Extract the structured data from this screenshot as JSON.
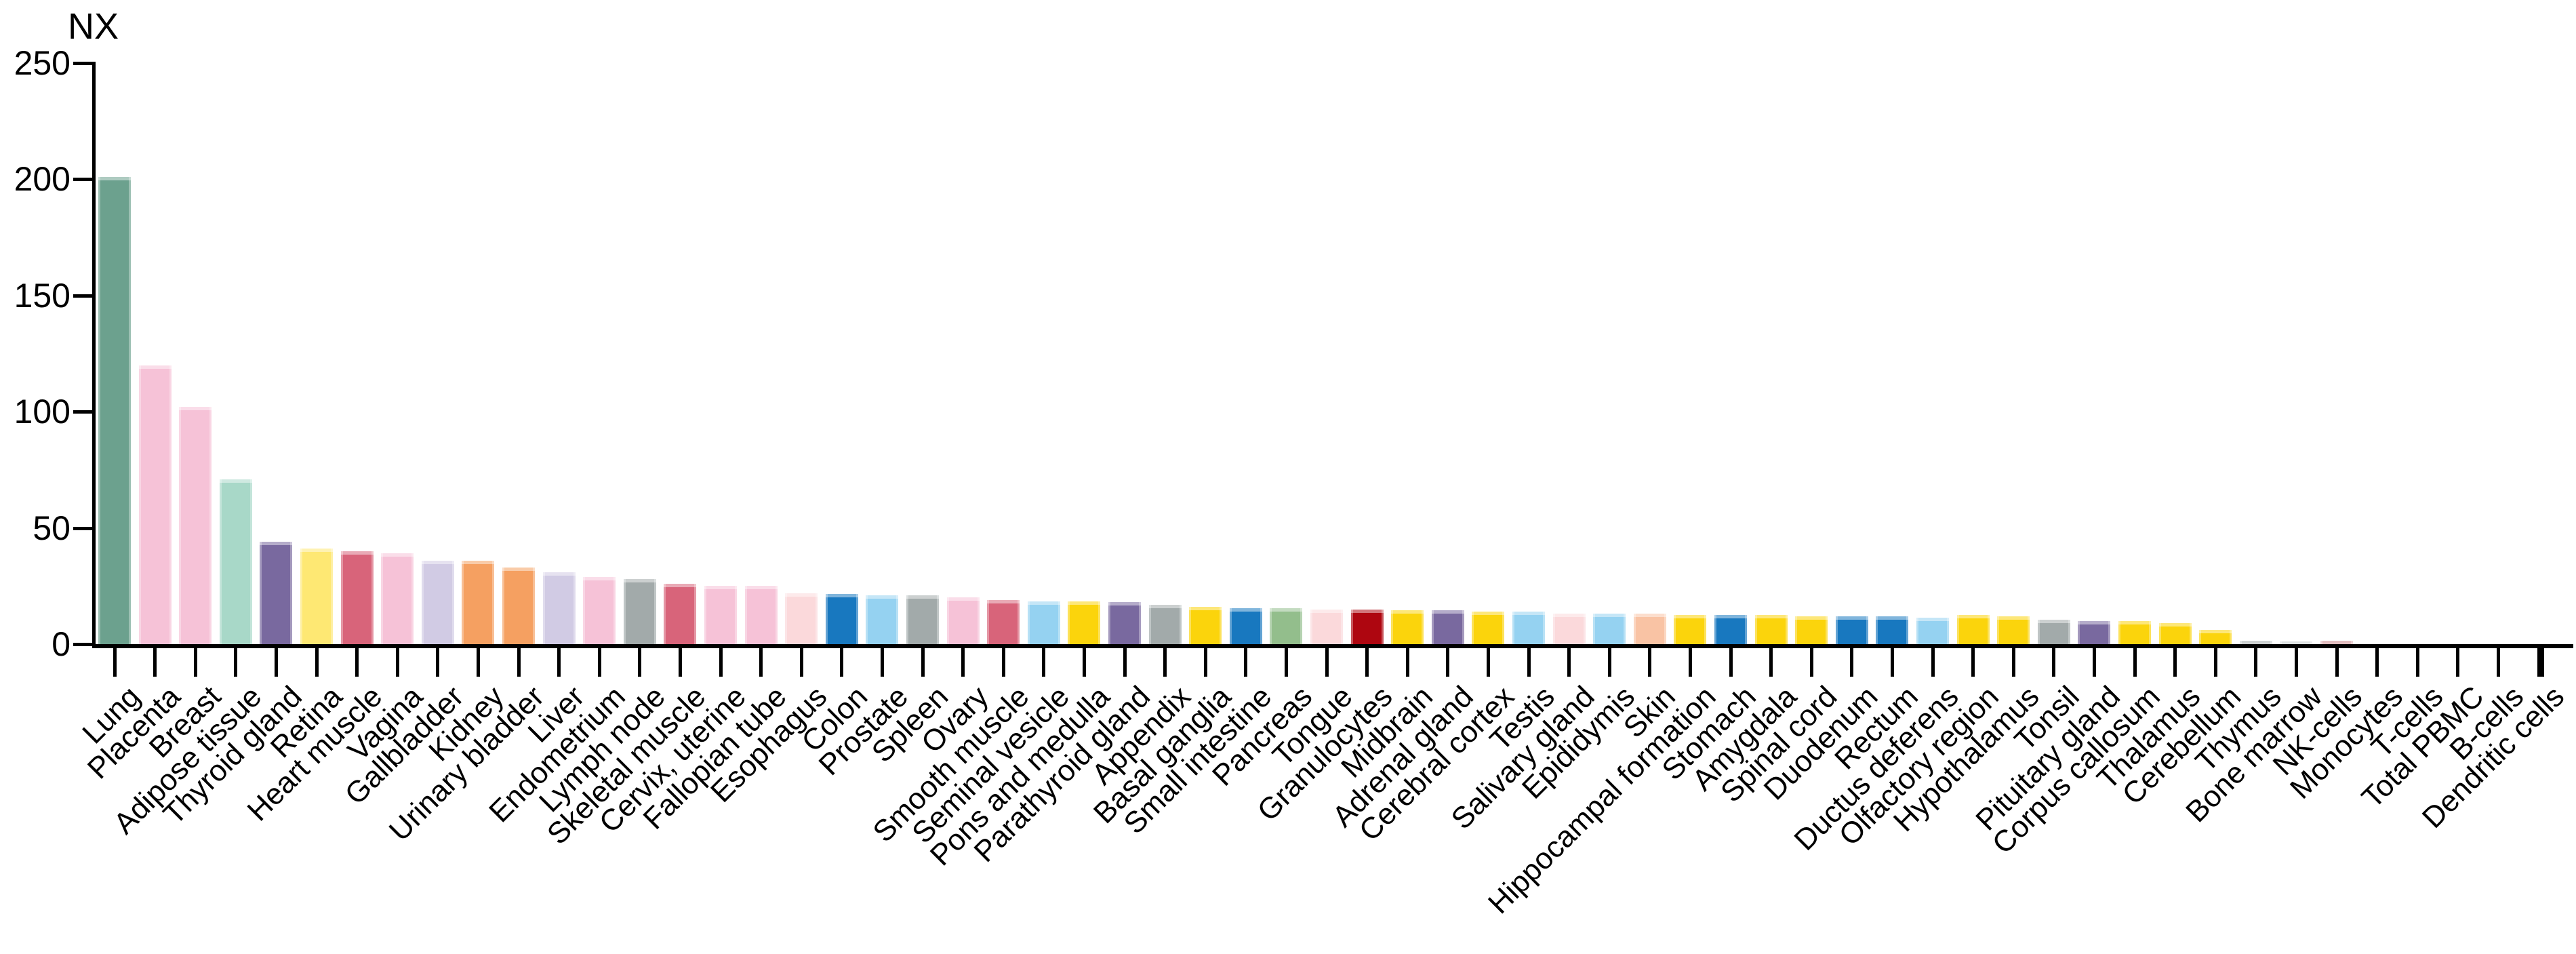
{
  "chart_data": {
    "type": "bar",
    "title": "",
    "ylabel": "NX",
    "xlabel": "",
    "ylim": [
      0,
      250
    ],
    "yticks": [
      0,
      50,
      100,
      150,
      200,
      250
    ],
    "grid": false,
    "legend_position": "none",
    "categories": [
      "Lung",
      "Placenta",
      "Breast",
      "Adipose tissue",
      "Thyroid gland",
      "Retina",
      "Heart muscle",
      "Vagina",
      "Gallbladder",
      "Kidney",
      "Urinary bladder",
      "Liver",
      "Endometrium",
      "Lymph node",
      "Skeletal muscle",
      "Cervix, uterine",
      "Fallopian tube",
      "Esophagus",
      "Colon",
      "Prostate",
      "Spleen",
      "Ovary",
      "Smooth muscle",
      "Seminal vesicle",
      "Pons and medulla",
      "Parathyroid gland",
      "Appendix",
      "Basal ganglia",
      "Small intestine",
      "Pancreas",
      "Tongue",
      "Granulocytes",
      "Midbrain",
      "Adrenal gland",
      "Cerebral cortex",
      "Testis",
      "Salivary gland",
      "Epididymis",
      "Skin",
      "Hippocampal formation",
      "Stomach",
      "Amygdala",
      "Spinal cord",
      "Duodenum",
      "Rectum",
      "Ductus deferens",
      "Olfactory region",
      "Hypothalamus",
      "Tonsil",
      "Pituitary gland",
      "Corpus callosum",
      "Thalamus",
      "Cerebellum",
      "Thymus",
      "Bone marrow",
      "NK-cells",
      "Monocytes",
      "T-cells",
      "Total PBMC",
      "B-cells",
      "Dendritic cells"
    ],
    "values": [
      201,
      120,
      102,
      71,
      44,
      41,
      40,
      39,
      36,
      36,
      33,
      31,
      29,
      28,
      26,
      25,
      25,
      22,
      21.5,
      21,
      21,
      20,
      19,
      18.5,
      18.5,
      18,
      17,
      16,
      15.5,
      15.5,
      15,
      15,
      14.5,
      14.5,
      14,
      14,
      13,
      13,
      13,
      12.5,
      12.5,
      12.5,
      12,
      12,
      12,
      11.5,
      12.5,
      12,
      10.5,
      10,
      10,
      9,
      6,
      1.6,
      1.2,
      1.6,
      0,
      0,
      0,
      0,
      0
    ],
    "bar_colors": [
      "#6CA18E",
      "#F6C2D7",
      "#F6C2D7",
      "#A8D8C8",
      "#79699F",
      "#FEE873",
      "#D8647A",
      "#F6C2D7",
      "#D1CBE4",
      "#F5A061",
      "#F5A061",
      "#D1CBE4",
      "#F6C2D7",
      "#A2AAAA",
      "#D8647A",
      "#F6C2D7",
      "#F6C2D7",
      "#FBD9DB",
      "#1878BF",
      "#95D2F1",
      "#A2AAAA",
      "#F6C2D7",
      "#D8647A",
      "#95D2F1",
      "#FBD40C",
      "#79699F",
      "#A2AAAA",
      "#FBD40C",
      "#1878BF",
      "#93BE8C",
      "#FBD9DB",
      "#AE0610",
      "#FBD40C",
      "#79699F",
      "#FBD40C",
      "#95D2F1",
      "#FBD9DB",
      "#95D2F1",
      "#F9C3A4",
      "#FBD40C",
      "#1878BF",
      "#FBD40C",
      "#FBD40C",
      "#1878BF",
      "#1878BF",
      "#95D2F1",
      "#FBD40C",
      "#FBD40C",
      "#A2AAAA",
      "#79699F",
      "#FBD40C",
      "#FBD40C",
      "#FBD40C",
      "#A2AAAA",
      "#C4CACA",
      "#C8878B",
      "#C8878B",
      "#A2AAAA",
      "#A2AAAA",
      "#A2AAAA",
      "#A2AAAA"
    ],
    "palette_legend": {
      "lung_green": "#6CA18E",
      "female_pink": "#F6C2D7",
      "adipose_teal": "#A8D8C8",
      "endocrine_purple": "#79699F",
      "retina_yellow": "#FEE873",
      "muscle_rose": "#D8647A",
      "liver_lavender": "#D1CBE4",
      "kidney_orange": "#F5A061",
      "lymphoid_gray": "#A2AAAA",
      "mouth_lightpink": "#FBD9DB",
      "gi_blue": "#1878BF",
      "male_lightblue": "#95D2F1",
      "brain_gold": "#FBD40C",
      "pancreas_green": "#93BE8C",
      "granulocyte_darkred": "#AE0610",
      "skin_peach": "#F9C3A4",
      "bone_marrow_lightgray": "#C4CACA",
      "nk_rose": "#C8878B",
      "axis_black": "#000000"
    }
  }
}
